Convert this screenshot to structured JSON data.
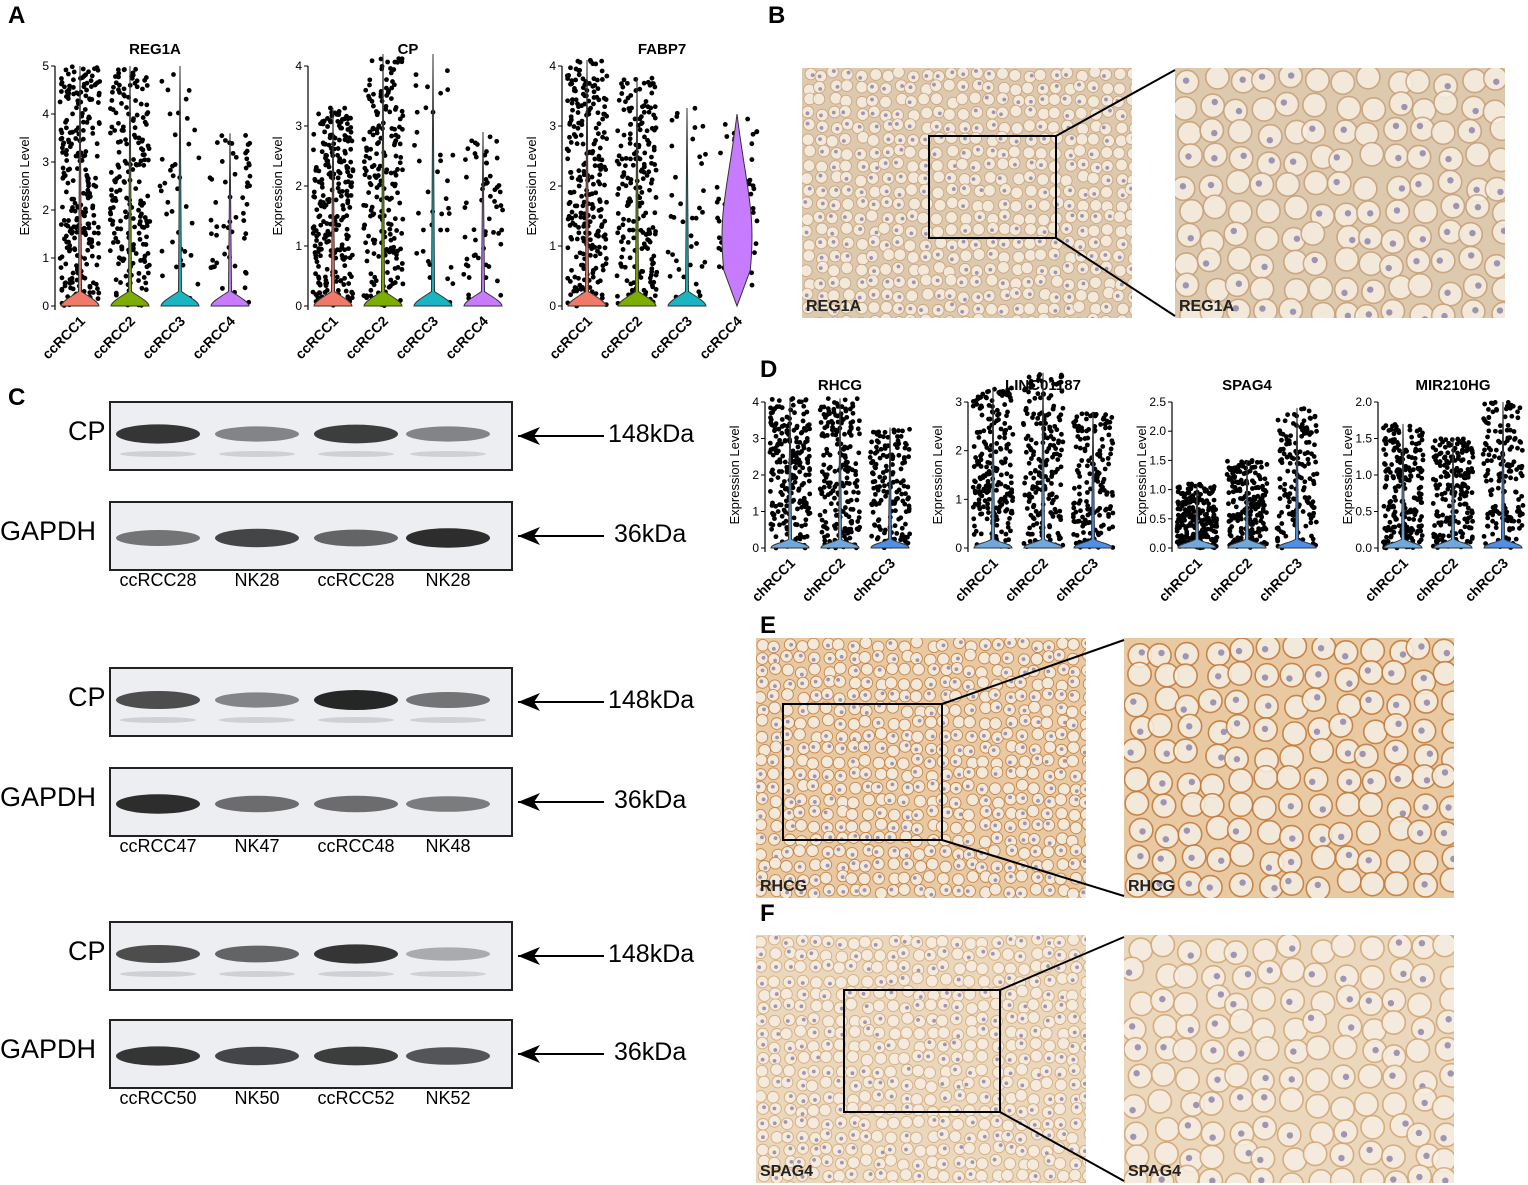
{
  "panels": {
    "A": "A",
    "B": "B",
    "C": "C",
    "D": "D",
    "E": "E",
    "F": "F"
  },
  "violin_y_label": "Expression Level",
  "chart_data": [
    {
      "panel": "A",
      "type": "violin",
      "title": "REG1A",
      "categories": [
        "ccRCC1",
        "ccRCC2",
        "ccRCC3",
        "ccRCC4"
      ],
      "ylim": [
        0,
        5
      ],
      "yticks": [
        0,
        1,
        2,
        3,
        4,
        5
      ],
      "colors": [
        "#f07a6a",
        "#7cae00",
        "#19b5c0",
        "#c77cff"
      ],
      "median_approx": [
        0,
        0,
        0,
        0
      ],
      "max_approx": [
        5.0,
        5.0,
        5.0,
        3.6
      ]
    },
    {
      "panel": "A",
      "type": "violin",
      "title": "CP",
      "categories": [
        "ccRCC1",
        "ccRCC2",
        "ccRCC3",
        "ccRCC4"
      ],
      "ylim": [
        0,
        4
      ],
      "yticks": [
        0,
        1,
        2,
        3,
        4
      ],
      "colors": [
        "#f07a6a",
        "#7cae00",
        "#19b5c0",
        "#c77cff"
      ],
      "median_approx": [
        0,
        0,
        0,
        0
      ],
      "max_approx": [
        3.3,
        4.2,
        4.2,
        2.9
      ]
    },
    {
      "panel": "A",
      "type": "violin",
      "title": "FABP7",
      "categories": [
        "ccRCC1",
        "ccRCC2",
        "ccRCC3",
        "ccRCC4"
      ],
      "ylim": [
        0,
        4
      ],
      "yticks": [
        0,
        1,
        2,
        3,
        4
      ],
      "colors": [
        "#f07a6a",
        "#7cae00",
        "#19b5c0",
        "#c77cff"
      ],
      "median_approx": [
        0,
        0,
        0,
        1.6
      ],
      "max_approx": [
        4.1,
        3.8,
        3.3,
        3.2
      ]
    },
    {
      "panel": "D",
      "type": "violin",
      "title": "RHCG",
      "categories": [
        "chRCC1",
        "chRCC2",
        "chRCC3"
      ],
      "ylim": [
        0,
        4
      ],
      "yticks": [
        0,
        1,
        2,
        3,
        4
      ],
      "colors": [
        "#6fa8dc",
        "#6fa8dc",
        "#4f8fe6"
      ],
      "max_approx": [
        4.1,
        4.1,
        3.3
      ]
    },
    {
      "panel": "D",
      "type": "violin",
      "title": "LINC01187",
      "categories": [
        "chRCC1",
        "chRCC2",
        "chRCC3"
      ],
      "ylim": [
        0,
        3
      ],
      "yticks": [
        0,
        1,
        2,
        3
      ],
      "colors": [
        "#6fa8dc",
        "#6fa8dc",
        "#4f8fe6"
      ],
      "max_approx": [
        3.3,
        3.6,
        2.8
      ]
    },
    {
      "panel": "D",
      "type": "violin",
      "title": "SPAG4",
      "categories": [
        "chRCC1",
        "chRCC2",
        "chRCC3"
      ],
      "ylim": [
        0,
        2.5
      ],
      "yticks": [
        0.0,
        0.5,
        1.0,
        1.5,
        2.0,
        2.5
      ],
      "colors": [
        "#6fa8dc",
        "#6fa8dc",
        "#4f8fe6"
      ],
      "max_approx": [
        1.1,
        1.5,
        2.4
      ]
    },
    {
      "panel": "D",
      "type": "violin",
      "title": "MIR210HG",
      "categories": [
        "chRCC1",
        "chRCC2",
        "chRCC3"
      ],
      "ylim": [
        0,
        2.0
      ],
      "yticks": [
        0.0,
        0.5,
        1.0,
        1.5,
        2.0
      ],
      "colors": [
        "#6fa8dc",
        "#6fa8dc",
        "#4f8fe6"
      ],
      "max_approx": [
        1.7,
        1.5,
        2.0
      ]
    }
  ],
  "blots": [
    {
      "protein": "CP",
      "kda": "148kDa",
      "loading": "GAPDH",
      "loading_kda": "36kDa",
      "lanes": [
        "ccRCC28",
        "NK28",
        "ccRCC28",
        "NK28"
      ],
      "cp_intensity": [
        0.9,
        0.4,
        0.85,
        0.4
      ],
      "gapdh_intensity": [
        0.5,
        0.8,
        0.6,
        0.95
      ]
    },
    {
      "protein": "CP",
      "kda": "148kDa",
      "loading": "GAPDH",
      "loading_kda": "36kDa",
      "lanes": [
        "ccRCC47",
        "NK47",
        "ccRCC48",
        "NK48"
      ],
      "cp_intensity": [
        0.75,
        0.4,
        1.0,
        0.5
      ],
      "gapdh_intensity": [
        0.95,
        0.55,
        0.55,
        0.45
      ]
    },
    {
      "protein": "CP",
      "kda": "148kDa",
      "loading": "GAPDH",
      "loading_kda": "36kDa",
      "lanes": [
        "ccRCC50",
        "NK50",
        "ccRCC52",
        "NK52"
      ],
      "cp_intensity": [
        0.75,
        0.6,
        0.9,
        0.15
      ],
      "gapdh_intensity": [
        0.9,
        0.8,
        0.85,
        0.7
      ]
    }
  ],
  "ihc": {
    "B": {
      "label": "REG1A",
      "color": "#ddc9ae",
      "stain": "#c9a079"
    },
    "E": {
      "label": "RHCG",
      "color": "#e8c9a2",
      "stain": "#c37a3a"
    },
    "F": {
      "label": "SPAG4",
      "color": "#ead7bc",
      "stain": "#d2a675"
    }
  }
}
